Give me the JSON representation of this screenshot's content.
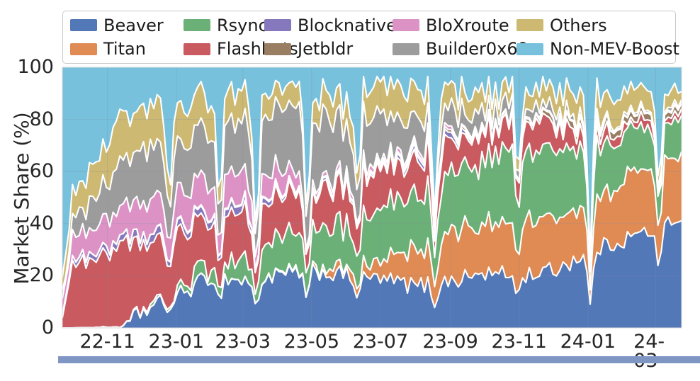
{
  "figure": {
    "y_axis_label": "Market Share (%)",
    "y_ticks": [
      0,
      20,
      40,
      60,
      80,
      100
    ],
    "x_ticks": [
      "22-11",
      "23-01",
      "23-03",
      "23-05",
      "23-07",
      "23-09",
      "23-11",
      "24-01",
      "24-03"
    ]
  },
  "legend": {
    "items": [
      {
        "label": "Beaver",
        "color": "#5378B8"
      },
      {
        "label": "Rsync",
        "color": "#6BB077"
      },
      {
        "label": "Blocknative",
        "color": "#8678BC"
      },
      {
        "label": "BloXroute",
        "color": "#DD92C6"
      },
      {
        "label": "Others",
        "color": "#CDB971"
      },
      {
        "label": "Titan",
        "color": "#E08A54"
      },
      {
        "label": "Flashbots",
        "color": "#C85A60"
      },
      {
        "label": "Jetbldr",
        "color": "#9A7E64"
      },
      {
        "label": "Builder0x69",
        "color": "#9C9C9C"
      },
      {
        "label": "Non-MEV-Boost",
        "color": "#77C1DC"
      }
    ]
  },
  "bottom_bar": {
    "color": "#7f96c4"
  },
  "chart_data": {
    "type": "area",
    "stacked": true,
    "title": "",
    "xlabel": "",
    "ylabel": "Market Share (%)",
    "ylim": [
      0,
      100
    ],
    "grid": true,
    "legend_position": "top",
    "x_unit": "days since 2022-09-22",
    "x_tick_days": [
      40,
      101,
      160,
      221,
      282,
      344,
      405,
      466,
      526
    ],
    "x_tick_labels": [
      "22-11",
      "23-01",
      "23-03",
      "23-05",
      "23-07",
      "23-09",
      "23-11",
      "24-01",
      "24-03"
    ],
    "keyframe_days": [
      0,
      9,
      40,
      54,
      70,
      101,
      132,
      160,
      191,
      221,
      252,
      282,
      313,
      344,
      374,
      405,
      435,
      466,
      497,
      526,
      549
    ],
    "keyframe_dates": [
      "2022-09-22",
      "2022-10-01",
      "2022-11-01",
      "2022-11-15",
      "2022-12-01",
      "2023-01-01",
      "2023-02-01",
      "2023-03-01",
      "2023-04-01",
      "2023-05-01",
      "2023-06-01",
      "2023-07-01",
      "2023-08-01",
      "2023-09-01",
      "2023-10-01",
      "2023-11-01",
      "2023-12-01",
      "2024-01-01",
      "2024-02-01",
      "2024-03-01",
      "2024-03-24"
    ],
    "series": [
      {
        "name": "Beaver",
        "color": "#5378B8",
        "noise": 3.5,
        "values": [
          0,
          0,
          0.3,
          0.5,
          6,
          12,
          20,
          18,
          20,
          22,
          20,
          19,
          16,
          18,
          21,
          20,
          22,
          29,
          34,
          38,
          43
        ]
      },
      {
        "name": "Titan",
        "color": "#E08A54",
        "noise": 3.0,
        "values": [
          0,
          0,
          0,
          0,
          0,
          0,
          0,
          0,
          0.3,
          1,
          3,
          7,
          13,
          19,
          18,
          22,
          20,
          20,
          22,
          24,
          25
        ]
      },
      {
        "name": "Rsync",
        "color": "#6BB077",
        "noise": 3.5,
        "values": [
          0,
          0,
          0,
          0,
          0.5,
          2,
          5,
          8,
          12,
          15,
          16,
          19,
          21,
          22,
          25,
          29,
          26,
          21,
          18,
          16,
          15
        ]
      },
      {
        "name": "Flashbots",
        "color": "#C85A60",
        "noise": 3.0,
        "values": [
          6,
          24,
          28,
          31,
          26,
          22,
          18,
          18,
          16,
          14,
          16,
          15,
          14,
          12,
          11,
          11,
          9,
          4,
          3,
          3,
          2
        ]
      },
      {
        "name": "Blocknative",
        "color": "#8678BC",
        "noise": 0.6,
        "values": [
          1,
          2,
          2.5,
          2.5,
          3,
          2.5,
          2.5,
          3,
          1.5,
          1,
          1,
          1,
          2,
          2,
          0.5,
          0,
          0,
          0,
          0,
          0,
          0
        ]
      },
      {
        "name": "Jetbldr",
        "color": "#9A7E64",
        "noise": 0.5,
        "values": [
          0,
          0,
          0,
          0,
          0,
          0.5,
          0.5,
          0.5,
          0.5,
          0.5,
          0.5,
          0.7,
          1,
          1,
          1,
          1,
          2,
          3,
          2.5,
          2.5,
          2
        ]
      },
      {
        "name": "BloXroute",
        "color": "#DD92C6",
        "noise": 1.5,
        "values": [
          5,
          9,
          11,
          11.5,
          13,
          13,
          12,
          12,
          8,
          2,
          2,
          1.8,
          1.5,
          1,
          0.7,
          0.6,
          0.6,
          0.4,
          0.4,
          0.5,
          0.5
        ]
      },
      {
        "name": "Builder0x69",
        "color": "#9C9C9C",
        "noise": 3.0,
        "values": [
          3,
          7,
          13,
          19,
          21,
          20,
          17,
          19,
          23,
          25,
          21,
          16,
          11,
          8,
          6,
          4,
          3,
          1.5,
          1,
          1,
          0.8
        ]
      },
      {
        "name": "Others",
        "color": "#CDB971",
        "noise": 2.0,
        "values": [
          6,
          10,
          15,
          18,
          16,
          14,
          13,
          11,
          8,
          7.5,
          9.5,
          12,
          11,
          8.5,
          8,
          6.5,
          8,
          10,
          10,
          6.5,
          5
        ]
      },
      {
        "name": "Non-MEV-Boost",
        "color": "#77C1DC",
        "fills_remainder_to_100": true,
        "values": [
          79,
          48,
          30.2,
          17.5,
          14.5,
          14,
          12,
          10.5,
          10.7,
          12,
          11,
          8.5,
          9.5,
          8.5,
          8.8,
          5.9,
          9.4,
          11.1,
          9.1,
          8.5,
          6.7
        ]
      }
    ],
    "dip_events": [
      {
        "day": 95,
        "factor": 0.55
      },
      {
        "day": 139,
        "factor": 0.5
      },
      {
        "day": 172,
        "factor": 0.3
      },
      {
        "day": 217,
        "factor": 0.4
      },
      {
        "day": 262,
        "factor": 0.55
      },
      {
        "day": 330,
        "factor": 0.5
      },
      {
        "day": 404,
        "factor": 0.6
      },
      {
        "day": 468,
        "factor": 0.3
      },
      {
        "day": 529,
        "factor": 0.5
      }
    ]
  }
}
